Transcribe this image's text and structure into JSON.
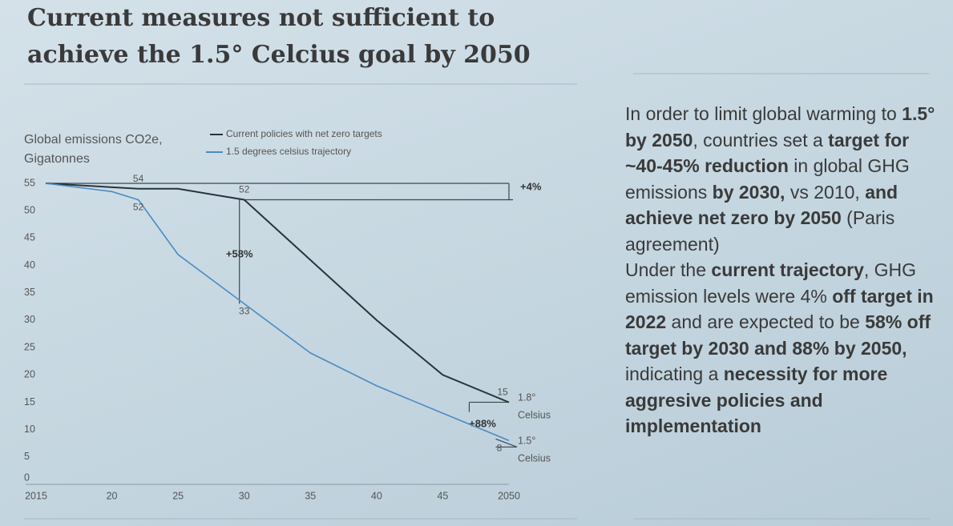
{
  "chart_data": {
    "type": "line",
    "title": "Current measures not sufficient to achieve the 1.5° Celcius goal by 2050",
    "y_label": [
      "Global emissions CO2e,",
      "Gigatonnes"
    ],
    "xlim": [
      2015,
      2050
    ],
    "xticks": [
      2015,
      {
        "value": 2020,
        "label": "20"
      },
      {
        "value": 2025,
        "label": "25"
      },
      {
        "value": 2030,
        "label": "30"
      },
      {
        "value": 2035,
        "label": "35"
      },
      {
        "value": 2040,
        "label": "40"
      },
      {
        "value": 2045,
        "label": "45"
      },
      2050
    ],
    "ylim": [
      0,
      55
    ],
    "yticks": [
      0,
      5,
      10,
      15,
      20,
      25,
      30,
      35,
      40,
      45,
      50,
      55
    ],
    "series": [
      {
        "name": "Current policies with net zero targets",
        "color": "#27343d",
        "x": [
          2015,
          2022,
          2025,
          2030,
          2035,
          2040,
          2045,
          2050
        ],
        "values": [
          55,
          54,
          54,
          52,
          41,
          30,
          20,
          15
        ],
        "value_labels": [
          null,
          "54",
          null,
          "52",
          null,
          null,
          null,
          "15"
        ]
      },
      {
        "name": "1.5 degrees celsius trajectory",
        "color": "#4a8cc4",
        "x": [
          2015,
          2020,
          2022,
          2025,
          2030,
          2035,
          2040,
          2045,
          2050
        ],
        "values": [
          55,
          53.5,
          52,
          42,
          33,
          24,
          18,
          13,
          8
        ],
        "value_labels": [
          null,
          null,
          "52",
          null,
          "33",
          null,
          null,
          null,
          "8"
        ]
      }
    ],
    "annotations": [
      "+4%",
      "+58%",
      "+88%"
    ],
    "end_labels": [
      {
        "temp": "1.8°",
        "unit": "Celsius"
      },
      {
        "temp": "1.5°",
        "unit": "Celsius"
      }
    ]
  },
  "side_text": {
    "paragraphs": [
      {
        "runs": [
          {
            "text": "In order to limit global warming to ",
            "bold": false
          },
          {
            "text": "1.5° by 2050",
            "bold": true
          },
          {
            "text": ", countries set a ",
            "bold": false
          },
          {
            "text": "target for ~40-45% reduction",
            "bold": true
          },
          {
            "text": " in global GHG emissions ",
            "bold": false
          },
          {
            "text": "by 2030,",
            "bold": true
          },
          {
            "text": " vs 2010, ",
            "bold": false
          },
          {
            "text": "and achieve net zero by 2050",
            "bold": true
          },
          {
            "text": " (Paris agreement)",
            "bold": false
          }
        ]
      },
      {
        "runs": [
          {
            "text": "Under the ",
            "bold": false
          },
          {
            "text": "current trajectory",
            "bold": true
          },
          {
            "text": ", GHG emission levels were 4% ",
            "bold": false
          },
          {
            "text": "off target in 2022",
            "bold": true
          },
          {
            "text": " and are expected to be ",
            "bold": false
          },
          {
            "text": "58% off target by 2030 and 88% by 2050,",
            "bold": true
          },
          {
            "text": " indicating a ",
            "bold": false
          },
          {
            "text": "necessity for more aggresive policies and implementation",
            "bold": true
          }
        ]
      }
    ]
  }
}
